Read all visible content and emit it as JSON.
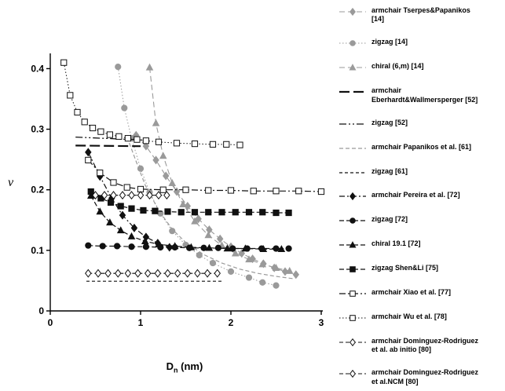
{
  "figure": {
    "y_axis_label": "ν",
    "x_label_main": "D",
    "x_label_sub": "n",
    "x_label_unit": " (nm)"
  },
  "chart_data": {
    "type": "scatter",
    "title": "",
    "xlabel": "D_n (nm)",
    "ylabel": "ν",
    "xlim": [
      0,
      3
    ],
    "ylim": [
      0,
      0.42
    ],
    "x_ticks": [
      0,
      1,
      2,
      3
    ],
    "y_ticks": [
      0,
      0.1,
      0.2,
      0.3,
      0.4
    ],
    "grid": false,
    "legend_position": "right",
    "series": [
      {
        "id": "tserpes-armchair-14",
        "label": [
          "armchair Tserpes&Papanikos",
          "[14]"
        ],
        "color": "#9a9a9a",
        "dash": "7,4",
        "width": 1.1,
        "marker": "diamond",
        "open": false,
        "points": [
          [
            0.95,
            0.29
          ],
          [
            1.06,
            0.272
          ],
          [
            1.17,
            0.249
          ],
          [
            1.28,
            0.223
          ],
          [
            1.4,
            0.197
          ],
          [
            1.52,
            0.173
          ],
          [
            1.64,
            0.152
          ],
          [
            1.76,
            0.134
          ],
          [
            1.88,
            0.119
          ],
          [
            2.0,
            0.106
          ],
          [
            2.12,
            0.095
          ],
          [
            2.24,
            0.086
          ],
          [
            2.36,
            0.078
          ],
          [
            2.48,
            0.071
          ],
          [
            2.6,
            0.065
          ],
          [
            2.72,
            0.06
          ]
        ]
      },
      {
        "id": "zigzag-14",
        "label": [
          "zigzag [14]"
        ],
        "color": "#9a9a9a",
        "dash": "1.5,2.5",
        "width": 1.0,
        "marker": "circle",
        "open": false,
        "points": [
          [
            0.75,
            0.403
          ],
          [
            0.82,
            0.335
          ],
          [
            0.9,
            0.285
          ],
          [
            1.0,
            0.235
          ],
          [
            1.1,
            0.196
          ],
          [
            1.22,
            0.161
          ],
          [
            1.35,
            0.132
          ],
          [
            1.5,
            0.109
          ],
          [
            1.65,
            0.092
          ],
          [
            1.8,
            0.079
          ],
          [
            2.0,
            0.065
          ],
          [
            2.2,
            0.055
          ],
          [
            2.35,
            0.047
          ],
          [
            2.5,
            0.042
          ]
        ]
      },
      {
        "id": "chiral-6m-14",
        "label": [
          "chiral (6,m) [14]"
        ],
        "color": "#9a9a9a",
        "dash": "7,4",
        "width": 1.1,
        "marker": "triangle",
        "open": false,
        "points": [
          [
            1.1,
            0.402
          ],
          [
            1.17,
            0.31
          ],
          [
            1.25,
            0.256
          ],
          [
            1.35,
            0.211
          ],
          [
            1.47,
            0.176
          ],
          [
            1.6,
            0.148
          ],
          [
            1.75,
            0.125
          ],
          [
            1.9,
            0.108
          ],
          [
            2.05,
            0.095
          ],
          [
            2.2,
            0.085
          ],
          [
            2.35,
            0.077
          ],
          [
            2.5,
            0.071
          ],
          [
            2.65,
            0.066
          ]
        ]
      },
      {
        "id": "eberhardt-armchair-52",
        "label": [
          "armchair",
          "Eberhardt&Wallmersperger [52]"
        ],
        "color": "#111111",
        "dash": "13,5",
        "width": 2.2,
        "marker": "none",
        "open": false,
        "points": [
          [
            0.28,
            0.273
          ],
          [
            1.0,
            0.272
          ]
        ]
      },
      {
        "id": "zigzag-52",
        "label": [
          "zigzag [52]"
        ],
        "color": "#111111",
        "dash": "9,3,2,3,2,3",
        "width": 1.3,
        "marker": "none",
        "open": false,
        "points": [
          [
            0.28,
            0.287
          ],
          [
            1.05,
            0.282
          ]
        ]
      },
      {
        "id": "papanikos-armchair-61",
        "label": [
          "armchair Papanikos et al. [61]"
        ],
        "color": "#9a9a9a",
        "dash": "5,3",
        "width": 1.2,
        "marker": "none",
        "open": false,
        "points": [
          [
            0.85,
            0.287
          ],
          [
            0.95,
            0.247
          ],
          [
            1.05,
            0.208
          ],
          [
            1.2,
            0.166
          ],
          [
            1.35,
            0.135
          ],
          [
            1.5,
            0.113
          ],
          [
            1.7,
            0.093
          ],
          [
            1.9,
            0.079
          ],
          [
            2.1,
            0.069
          ],
          [
            2.3,
            0.062
          ],
          [
            2.5,
            0.057
          ],
          [
            2.7,
            0.053
          ]
        ]
      },
      {
        "id": "zigzag-61",
        "label": [
          "zigzag [61]"
        ],
        "color": "#111111",
        "dash": "4,3",
        "width": 1.2,
        "marker": "none",
        "open": false,
        "points": [
          [
            0.4,
            0.049
          ],
          [
            1.9,
            0.049
          ]
        ]
      },
      {
        "id": "pereira-armchair-72",
        "label": [
          "armchair Pereira et al. [72]"
        ],
        "color": "#111111",
        "dash": "7,3,2,3",
        "width": 1.2,
        "marker": "diamond",
        "open": false,
        "points": [
          [
            0.42,
            0.262
          ],
          [
            0.55,
            0.222
          ],
          [
            0.68,
            0.186
          ],
          [
            0.8,
            0.158
          ],
          [
            0.93,
            0.137
          ],
          [
            1.06,
            0.122
          ],
          [
            1.19,
            0.112
          ],
          [
            1.32,
            0.105
          ]
        ]
      },
      {
        "id": "zigzag-72",
        "label": [
          "zigzag [72]"
        ],
        "color": "#111111",
        "dash": "6,3",
        "width": 1.2,
        "marker": "circle",
        "open": false,
        "points": [
          [
            0.42,
            0.108
          ],
          [
            0.58,
            0.107
          ],
          [
            0.74,
            0.107
          ],
          [
            0.9,
            0.106
          ],
          [
            1.06,
            0.106
          ],
          [
            1.22,
            0.105
          ],
          [
            1.38,
            0.105
          ],
          [
            1.54,
            0.104
          ],
          [
            1.7,
            0.104
          ],
          [
            1.86,
            0.104
          ],
          [
            2.02,
            0.103
          ],
          [
            2.18,
            0.103
          ],
          [
            2.34,
            0.103
          ],
          [
            2.5,
            0.103
          ],
          [
            2.64,
            0.103
          ]
        ]
      },
      {
        "id": "chiral-191-72",
        "label": [
          "chiral 19.1 [72]"
        ],
        "color": "#111111",
        "dash": "6,3",
        "width": 1.2,
        "marker": "triangle",
        "open": false,
        "points": [
          [
            0.45,
            0.19
          ],
          [
            0.55,
            0.164
          ],
          [
            0.66,
            0.146
          ],
          [
            0.78,
            0.133
          ],
          [
            0.9,
            0.123
          ],
          [
            1.05,
            0.115
          ],
          [
            1.2,
            0.11
          ],
          [
            1.38,
            0.107
          ],
          [
            1.56,
            0.105
          ],
          [
            1.76,
            0.104
          ],
          [
            1.96,
            0.103
          ],
          [
            2.16,
            0.103
          ],
          [
            2.36,
            0.102
          ],
          [
            2.56,
            0.102
          ]
        ]
      },
      {
        "id": "shen-li-zigzag-75",
        "label": [
          "zigzag Shen&Li [75]"
        ],
        "color": "#111111",
        "dash": "6,3",
        "width": 1.2,
        "marker": "square",
        "open": false,
        "points": [
          [
            0.45,
            0.197
          ],
          [
            0.56,
            0.186
          ],
          [
            0.67,
            0.179
          ],
          [
            0.78,
            0.173
          ],
          [
            0.9,
            0.169
          ],
          [
            1.03,
            0.166
          ],
          [
            1.16,
            0.165
          ],
          [
            1.3,
            0.164
          ],
          [
            1.45,
            0.163
          ],
          [
            1.6,
            0.163
          ],
          [
            1.75,
            0.163
          ],
          [
            1.9,
            0.163
          ],
          [
            2.05,
            0.163
          ],
          [
            2.2,
            0.163
          ],
          [
            2.35,
            0.163
          ],
          [
            2.5,
            0.162
          ],
          [
            2.64,
            0.162
          ]
        ]
      },
      {
        "id": "xiao-armchair-77",
        "label": [
          "armchair Xiao et al. [77]"
        ],
        "color": "#111111",
        "dash": "8,3,2,3",
        "width": 1.2,
        "marker": "square",
        "open": true,
        "points": [
          [
            0.42,
            0.249
          ],
          [
            0.55,
            0.228
          ],
          [
            0.7,
            0.212
          ],
          [
            0.85,
            0.204
          ],
          [
            1.0,
            0.201
          ],
          [
            1.25,
            0.2
          ],
          [
            1.5,
            0.2
          ],
          [
            1.75,
            0.199
          ],
          [
            2.0,
            0.199
          ],
          [
            2.25,
            0.198
          ],
          [
            2.5,
            0.198
          ],
          [
            2.75,
            0.198
          ],
          [
            3.0,
            0.197
          ]
        ]
      },
      {
        "id": "wu-armchair-78",
        "label": [
          "armchair Wu et al. [78]"
        ],
        "color": "#111111",
        "dash": "1.5,2.5",
        "width": 1.0,
        "marker": "square",
        "open": true,
        "points": [
          [
            0.15,
            0.41
          ],
          [
            0.22,
            0.356
          ],
          [
            0.3,
            0.328
          ],
          [
            0.38,
            0.312
          ],
          [
            0.47,
            0.302
          ],
          [
            0.56,
            0.296
          ],
          [
            0.66,
            0.291
          ],
          [
            0.76,
            0.288
          ],
          [
            0.86,
            0.285
          ],
          [
            0.96,
            0.283
          ],
          [
            1.06,
            0.281
          ],
          [
            1.2,
            0.279
          ],
          [
            1.4,
            0.277
          ],
          [
            1.6,
            0.276
          ],
          [
            1.8,
            0.275
          ],
          [
            1.95,
            0.275
          ],
          [
            2.1,
            0.274
          ]
        ]
      },
      {
        "id": "dominguez-ab-initio-80",
        "label": [
          "armchair Dominguez-Rodriguez",
          "et al. ab initio [80]"
        ],
        "color": "#111111",
        "dash": "5,3",
        "width": 1.1,
        "marker": "diamond",
        "open": true,
        "points": [
          [
            0.5,
            0.191
          ],
          [
            0.6,
            0.191
          ],
          [
            0.7,
            0.191
          ],
          [
            0.8,
            0.191
          ],
          [
            0.9,
            0.191
          ],
          [
            1.0,
            0.191
          ],
          [
            1.1,
            0.191
          ],
          [
            1.2,
            0.191
          ],
          [
            1.29,
            0.191
          ]
        ]
      },
      {
        "id": "dominguez-ncm-80",
        "label": [
          "armchair Dominguez-Rodriguez",
          "et al.NCM [80]"
        ],
        "color": "#111111",
        "dash": "5,3",
        "width": 1.1,
        "marker": "diamond",
        "open": true,
        "points": [
          [
            0.42,
            0.062
          ],
          [
            0.53,
            0.062
          ],
          [
            0.64,
            0.062
          ],
          [
            0.75,
            0.062
          ],
          [
            0.86,
            0.062
          ],
          [
            0.97,
            0.062
          ],
          [
            1.08,
            0.062
          ],
          [
            1.19,
            0.062
          ],
          [
            1.3,
            0.062
          ],
          [
            1.41,
            0.062
          ],
          [
            1.52,
            0.062
          ],
          [
            1.63,
            0.062
          ],
          [
            1.74,
            0.062
          ],
          [
            1.85,
            0.062
          ]
        ]
      }
    ]
  }
}
